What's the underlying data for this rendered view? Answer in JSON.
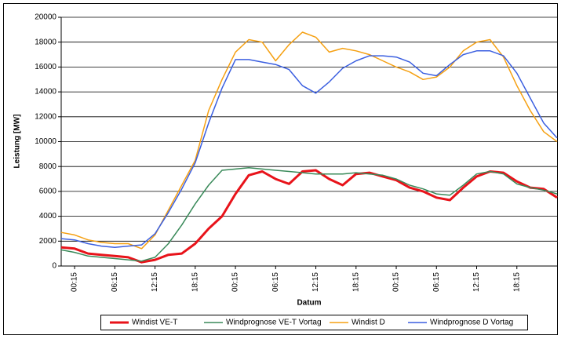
{
  "chart_data": {
    "type": "line",
    "y_label": "Leistung [MW]",
    "x_label": "Datum",
    "ylim": [
      0,
      20000
    ],
    "yticks": [
      0,
      2000,
      4000,
      6000,
      8000,
      10000,
      12000,
      14000,
      16000,
      18000,
      20000
    ],
    "grid": true,
    "legend": "bottom",
    "categories": [
      null,
      "00:15",
      null,
      null,
      "06:15",
      null,
      null,
      "12:15",
      null,
      null,
      "18:15",
      null,
      null,
      "00:15",
      null,
      null,
      "06:15",
      null,
      null,
      "12:15",
      null,
      null,
      "18:15",
      null,
      null,
      "00:15",
      null,
      null,
      "06:15",
      null,
      null,
      "12:15",
      null,
      null,
      "18:15",
      null,
      null,
      null
    ],
    "series": [
      {
        "name": "Windist VE-T",
        "color": "#e8131a",
        "width": 3,
        "values": [
          1500,
          1400,
          1000,
          900,
          800,
          700,
          300,
          500,
          900,
          1000,
          1800,
          3000,
          4000,
          5800,
          7300,
          7600,
          7000,
          6600,
          7600,
          7700,
          7000,
          6500,
          7400,
          7500,
          7200,
          6900,
          6300,
          6000,
          5500,
          5300,
          6300,
          7200,
          7600,
          7500,
          6800,
          6300,
          6200,
          5500
        ]
      },
      {
        "name": "Windprognose VE-T Vortag",
        "color": "#3a8a5a",
        "width": 1.5,
        "values": [
          1300,
          1100,
          800,
          700,
          600,
          500,
          400,
          700,
          1800,
          3300,
          5000,
          6500,
          7700,
          7800,
          7900,
          7800,
          7700,
          7600,
          7500,
          7400,
          7400,
          7400,
          7500,
          7400,
          7300,
          7000,
          6500,
          6200,
          5800,
          5700,
          6500,
          7400,
          7600,
          7400,
          6600,
          6300,
          6100,
          5800
        ]
      },
      {
        "name": "Windist D",
        "color": "#f5a012",
        "width": 1.5,
        "values": [
          2700,
          2500,
          2100,
          1900,
          1800,
          1800,
          1400,
          2500,
          4500,
          6500,
          8500,
          12500,
          15000,
          17200,
          18200,
          18000,
          16500,
          17800,
          18800,
          18400,
          17200,
          17500,
          17300,
          17000,
          16500,
          16000,
          15600,
          15000,
          15200,
          16000,
          17300,
          18000,
          18200,
          16800,
          14500,
          12500,
          10800,
          10000
        ]
      },
      {
        "name": "Windprognose D Vortag",
        "color": "#3b5fe0",
        "width": 1.5,
        "values": [
          2200,
          2100,
          1800,
          1600,
          1500,
          1600,
          1700,
          2600,
          4300,
          6200,
          8300,
          11500,
          14300,
          16600,
          16600,
          16400,
          16200,
          15800,
          14500,
          13900,
          14800,
          15900,
          16500,
          16900,
          16900,
          16800,
          16400,
          15500,
          15300,
          16200,
          17000,
          17300,
          17300,
          16900,
          15500,
          13500,
          11500,
          10300
        ]
      }
    ]
  }
}
